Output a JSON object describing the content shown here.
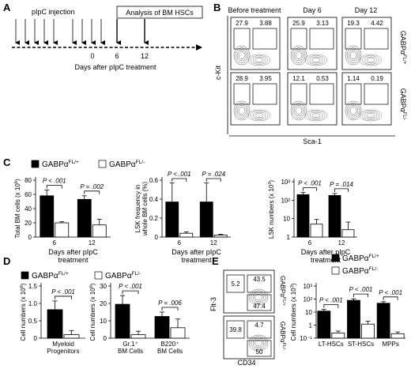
{
  "panels": {
    "A": {
      "label": "A",
      "injection_label": "pIpC injection",
      "analysis_label": "Analysis of BM HSCs",
      "ticks": [
        "0",
        "6",
        "12"
      ],
      "axis_title": "Days after pIpC treatment"
    },
    "B": {
      "label": "B",
      "columns": [
        "Before treatment",
        "Day 6",
        "Day 12"
      ],
      "y_axis": "c-Kit",
      "x_axis": "Sca-1",
      "rows": [
        {
          "genotype": "GABPα",
          "sup": "FL/+",
          "values": [
            [
              "27.9",
              "3.88"
            ],
            [
              "25.9",
              "3.13"
            ],
            [
              "19.3",
              "4.42"
            ]
          ]
        },
        {
          "genotype": "GABPα",
          "sup": "FL/-",
          "values": [
            [
              "28.9",
              "3.95"
            ],
            [
              "12.1",
              "0.53"
            ],
            [
              "1.14",
              "0.19"
            ]
          ]
        }
      ]
    },
    "C": {
      "label": "C",
      "legend": [
        {
          "name": "GABPα",
          "sup": "FL/+",
          "color": "#000000"
        },
        {
          "name": "GABPα",
          "sup": "FL/-",
          "color": "#ffffff"
        }
      ]
    },
    "D": {
      "label": "D",
      "legend": [
        {
          "name": "GABPα",
          "sup": "FL/+",
          "color": "#000000"
        },
        {
          "name": "GABPα",
          "sup": "FL/-",
          "color": "#ffffff"
        }
      ]
    },
    "E": {
      "label": "E",
      "legend": [
        {
          "name": "GABPα",
          "sup": "FL/+",
          "color": "#000000"
        },
        {
          "name": "GABPα",
          "sup": "FL/-",
          "color": "#ffffff"
        }
      ],
      "flow": {
        "y_axis": "Flt-3",
        "x_axis": "CD34",
        "rows": [
          {
            "genotype": "GABPα",
            "sup": "FL/+",
            "values": [
              "5.2",
              "43.5",
              "47.4"
            ]
          },
          {
            "genotype": "GABPα",
            "sup": "FL/-",
            "values": [
              "39.8",
              "4.7",
              "50"
            ]
          }
        ]
      }
    }
  },
  "chart_data": [
    {
      "id": "C1",
      "type": "bar",
      "categories": [
        "6",
        "12"
      ],
      "series": [
        {
          "name": "GABPα FL/+",
          "values": [
            58,
            53
          ],
          "errors": [
            8,
            5
          ]
        },
        {
          "name": "GABPα FL/-",
          "values": [
            20,
            17
          ],
          "errors": [
            1.5,
            8
          ]
        }
      ],
      "ylabel": "Total BM cells (x 10^6)",
      "ylabel_main": "Total BM cells (x 10",
      "ylabel_sup": "6",
      "ylabel_end": ")",
      "xlabel": "Days after pIpC treatment",
      "ylim": [
        0,
        80
      ],
      "yticks": [
        "0",
        "20",
        "40",
        "60",
        "80"
      ],
      "log": false,
      "pvalues": [
        "P < .001",
        "P = .002"
      ]
    },
    {
      "id": "C2",
      "type": "bar",
      "categories": [
        "6",
        "12"
      ],
      "series": [
        {
          "name": "GABPα FL/+",
          "values": [
            0.37,
            0.37
          ],
          "errors": [
            0.2,
            0.2
          ]
        },
        {
          "name": "GABPα FL/-",
          "values": [
            0.04,
            0.02
          ],
          "errors": [
            0.015,
            0.01
          ]
        }
      ],
      "ylabel": "LSK frequency in whole BM cells (%)",
      "ylabel_line1": "LSK frequency in",
      "ylabel_line2": "whole BM cells (%)",
      "xlabel": "Days after pIpC treatment",
      "ylim": [
        0,
        0.6
      ],
      "yticks": [
        "0",
        "0.2",
        "0.4",
        "0.6"
      ],
      "log": false,
      "pvalues": [
        "P < .001",
        "P = .024"
      ]
    },
    {
      "id": "C3",
      "type": "bar",
      "categories": [
        "6",
        "12"
      ],
      "series": [
        {
          "name": "GABPα FL/+",
          "values": [
            200,
            180
          ],
          "errors": [
            60,
            50
          ]
        },
        {
          "name": "GABPα FL/-",
          "values": [
            5,
            2.5
          ],
          "errors": [
            4,
            4
          ]
        }
      ],
      "ylabel": "LSK numbers (x 10^3)",
      "ylabel_main": "LSK numbers (x 10",
      "ylabel_sup": "3",
      "ylabel_end": ")",
      "xlabel": "Days after pIpC treatment",
      "ylim": [
        1,
        1000
      ],
      "yticks": [
        "1",
        "10",
        "10²",
        "10³"
      ],
      "log": true,
      "pvalues": [
        "P < .001",
        "P = .014"
      ]
    },
    {
      "id": "D1",
      "type": "bar",
      "categories": [
        "Myeloid Progenitors"
      ],
      "series": [
        {
          "name": "GABPα FL/+",
          "values": [
            0.82
          ],
          "errors": [
            0.25
          ]
        },
        {
          "name": "GABPα FL/-",
          "values": [
            0.1
          ],
          "errors": [
            0.12
          ]
        }
      ],
      "ylabel": "Cell numbers (x 10^6)",
      "ylabel_main": "Cell numbers (x 10",
      "ylabel_sup": "6",
      "ylabel_end": ")",
      "ylim": [
        0,
        1.5
      ],
      "yticks": [
        "0",
        "0.5",
        "1.0",
        "1.5"
      ],
      "log": false,
      "pvalues": [
        "P < .001"
      ]
    },
    {
      "id": "D2",
      "type": "bar",
      "categories": [
        "Gr.1⁺ BM Cells",
        "B220⁺ BM Cells"
      ],
      "series": [
        {
          "name": "GABPα FL/+",
          "values": [
            19.5,
            12.5
          ],
          "errors": [
            5,
            2.5
          ]
        },
        {
          "name": "GABPα FL/-",
          "values": [
            2,
            6
          ],
          "errors": [
            2,
            5
          ]
        }
      ],
      "ylabel": "Cell numbers (x 10^6)",
      "ylabel_main": "Cell numbers (x 10",
      "ylabel_sup": "6",
      "ylabel_end": ")",
      "ylim": [
        0,
        30
      ],
      "yticks": [
        "0",
        "10",
        "20",
        "30"
      ],
      "log": false,
      "pvalues": [
        "P < .001",
        "P = .006"
      ]
    },
    {
      "id": "E1",
      "type": "bar",
      "categories": [
        "LT-HSCs",
        "ST-HSCs",
        "MPPs"
      ],
      "series": [
        {
          "name": "GABPα FL/+",
          "values": [
            12,
            80,
            48
          ],
          "errors": [
            4,
            25,
            15
          ]
        },
        {
          "name": "GABPα FL/-",
          "values": [
            0.25,
            1.2,
            0.22
          ],
          "errors": [
            0.1,
            0.8,
            0.08
          ]
        }
      ],
      "ylabel": "Cell numbers (x 10^3)",
      "ylabel_main": "Cell numbers (x 10",
      "ylabel_sup": "3",
      "ylabel_end": ")",
      "ylim": [
        0.1,
        1000
      ],
      "yticks": [
        "10⁻¹",
        "1",
        "10",
        "10²",
        "10³"
      ],
      "log": true,
      "pvalues": [
        "P < .001",
        "P < .001",
        "P < .001"
      ]
    }
  ]
}
